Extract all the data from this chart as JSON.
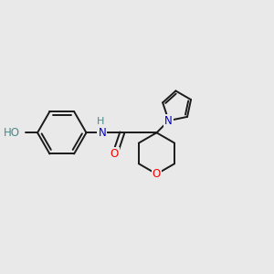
{
  "bg_color": "#e9e9e9",
  "bond_color": "#1a1a1a",
  "bond_width": 1.4,
  "atom_colors": {
    "O": "#ff0000",
    "N": "#0000cc",
    "H_label": "#4a8a8a",
    "C": "#1a1a1a"
  },
  "font_size": 8.5,
  "fig_size": [
    3.0,
    3.0
  ],
  "dpi": 100
}
